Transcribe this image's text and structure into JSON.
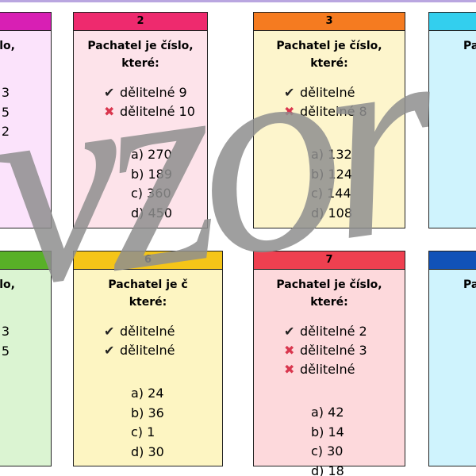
{
  "cards": [
    {
      "lines": [
        "slo,"
      ],
      "options": [
        "3",
        "5",
        "2"
      ]
    },
    {
      "number": "2",
      "lines": [
        "Pachatel je číslo,",
        "které:"
      ],
      "criteria": [
        {
          "mark": "check",
          "text": "dělitelné 9"
        },
        {
          "mark": "cross",
          "text": "dělitelné 10"
        }
      ],
      "options": [
        "a) 270",
        "b) 189",
        "c) 360",
        "d) 450"
      ]
    },
    {
      "number": "3",
      "lines": [
        "Pachatel je číslo,",
        "které:"
      ],
      "criteria": [
        {
          "mark": "check",
          "text": "dělitelné"
        },
        {
          "mark": "cross",
          "text": "dělitelné 8"
        }
      ],
      "options": [
        "a) 132",
        "b) 124",
        "c) 144",
        "d) 108"
      ]
    },
    {
      "lines": [
        "Pachat"
      ]
    },
    {
      "lines": [
        "slo,"
      ],
      "options": [
        "3",
        "5"
      ]
    },
    {
      "number": "6",
      "lines": [
        "Pachatel je č",
        "které:"
      ],
      "criteria": [
        {
          "mark": "check",
          "text": "dělitelné"
        },
        {
          "mark": "check",
          "text": "dělitelné"
        }
      ],
      "options": [
        "a) 24",
        "b) 36",
        "c) 1",
        "d) 30"
      ]
    },
    {
      "number": "7",
      "lines": [
        "Pachatel je číslo,",
        "které:"
      ],
      "criteria": [
        {
          "mark": "check",
          "text": "dělitelné 2"
        },
        {
          "mark": "cross",
          "text": "dělitelné 3"
        },
        {
          "mark": "cross",
          "text": "dělitelné"
        }
      ],
      "options": [
        "a) 42",
        "b) 14",
        "c) 30",
        "d) 18"
      ]
    },
    {
      "lines": [
        "Pach"
      ]
    }
  ],
  "watermark": "vzor"
}
